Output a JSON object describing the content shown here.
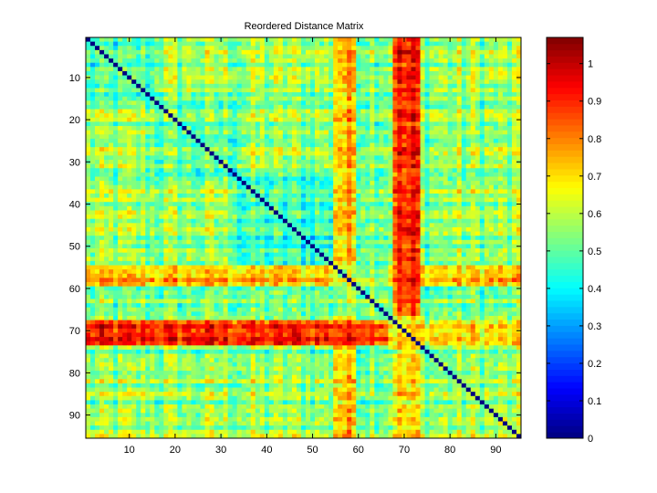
{
  "chart_data": {
    "type": "heatmap",
    "title": "Reordered Distance Matrix",
    "size": 95,
    "x_ticks": [
      10,
      20,
      30,
      40,
      50,
      60,
      70,
      80,
      90
    ],
    "y_ticks": [
      10,
      20,
      30,
      40,
      50,
      60,
      70,
      80,
      90
    ],
    "colorbar": {
      "range": [
        0,
        1.07
      ],
      "ticks": [
        0,
        0.1,
        0.2,
        0.3,
        0.4,
        0.5,
        0.6,
        0.7,
        0.8,
        0.9,
        1
      ],
      "tick_labels": [
        "0",
        "0.1",
        "0.2",
        "0.3",
        "0.4",
        "0.5",
        "0.6",
        "0.7",
        "0.8",
        "0.9",
        "1"
      ],
      "colormap": "jet"
    },
    "diagonal_value": 0,
    "clusters": [
      {
        "start": 1,
        "end": 15,
        "within": 0.45
      },
      {
        "start": 16,
        "end": 33,
        "within": 0.5
      },
      {
        "start": 34,
        "end": 54,
        "within": 0.45
      },
      {
        "start": 55,
        "end": 66,
        "within": 0.6
      },
      {
        "start": 67,
        "end": 95,
        "within": 0.55
      }
    ],
    "high_distance_bands": [
      {
        "start": 68,
        "end": 73,
        "value": 0.88
      },
      {
        "start": 55,
        "end": 59,
        "value": 0.72
      }
    ],
    "background_value": 0.55
  }
}
